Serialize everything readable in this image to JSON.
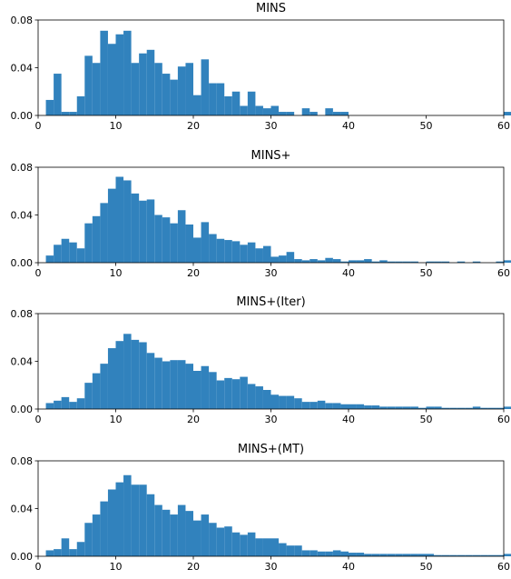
{
  "figure": {
    "bar_color": "#3182bd",
    "axis_color": "#000000"
  },
  "chart_data": [
    {
      "type": "bar",
      "title": "MINS",
      "xlim": [
        0,
        60
      ],
      "ylim": [
        0,
        0.08
      ],
      "xticks": [
        0,
        10,
        20,
        30,
        40,
        50,
        60
      ],
      "yticks": [
        0.0,
        0.04,
        0.08
      ],
      "ytick_labels": [
        "0.00",
        "0.04",
        "0.08"
      ],
      "bin_start": 1,
      "bin_width": 1,
      "values": [
        0.013,
        0.035,
        0.003,
        0.003,
        0.016,
        0.05,
        0.044,
        0.071,
        0.06,
        0.068,
        0.071,
        0.044,
        0.052,
        0.055,
        0.044,
        0.035,
        0.03,
        0.041,
        0.044,
        0.017,
        0.047,
        0.027,
        0.027,
        0.016,
        0.02,
        0.008,
        0.02,
        0.008,
        0.006,
        0.008,
        0.003,
        0.003,
        0,
        0.006,
        0.003,
        0,
        0.006,
        0.003,
        0.003,
        0,
        0,
        0,
        0,
        0,
        0,
        0,
        0,
        0,
        0,
        0,
        0,
        0,
        0,
        0,
        0,
        0,
        0,
        0,
        0,
        0.003
      ],
      "grid": false,
      "legend": "none"
    },
    {
      "type": "bar",
      "title": "MINS+",
      "xlim": [
        0,
        60
      ],
      "ylim": [
        0,
        0.08
      ],
      "xticks": [
        0,
        10,
        20,
        30,
        40,
        50,
        60
      ],
      "yticks": [
        0.0,
        0.04,
        0.08
      ],
      "ytick_labels": [
        "0.00",
        "0.04",
        "0.08"
      ],
      "bin_start": 1,
      "bin_width": 1,
      "values": [
        0.006,
        0.015,
        0.02,
        0.017,
        0.012,
        0.033,
        0.039,
        0.05,
        0.062,
        0.072,
        0.069,
        0.058,
        0.052,
        0.053,
        0.04,
        0.038,
        0.033,
        0.044,
        0.032,
        0.021,
        0.034,
        0.024,
        0.02,
        0.019,
        0.018,
        0.015,
        0.017,
        0.012,
        0.014,
        0.005,
        0.006,
        0.009,
        0.003,
        0.002,
        0.003,
        0.002,
        0.004,
        0.003,
        0.001,
        0.002,
        0.002,
        0.003,
        0.001,
        0.002,
        0.001,
        0.001,
        0.001,
        0.001,
        0,
        0.001,
        0.001,
        0.001,
        0,
        0.001,
        0,
        0.001,
        0,
        0,
        0.001,
        0.002
      ],
      "grid": false,
      "legend": "none"
    },
    {
      "type": "bar",
      "title": "MINS+(Iter)",
      "xlim": [
        0,
        60
      ],
      "ylim": [
        0,
        0.08
      ],
      "xticks": [
        0,
        10,
        20,
        30,
        40,
        50,
        60
      ],
      "yticks": [
        0.0,
        0.04,
        0.08
      ],
      "ytick_labels": [
        "0.00",
        "0.04",
        "0.08"
      ],
      "bin_start": 1,
      "bin_width": 1,
      "values": [
        0.005,
        0.007,
        0.01,
        0.006,
        0.009,
        0.022,
        0.03,
        0.038,
        0.051,
        0.057,
        0.063,
        0.058,
        0.056,
        0.047,
        0.043,
        0.04,
        0.041,
        0.041,
        0.038,
        0.032,
        0.036,
        0.031,
        0.024,
        0.026,
        0.025,
        0.027,
        0.021,
        0.019,
        0.016,
        0.012,
        0.011,
        0.011,
        0.009,
        0.006,
        0.006,
        0.007,
        0.005,
        0.005,
        0.004,
        0.004,
        0.004,
        0.003,
        0.003,
        0.002,
        0.002,
        0.002,
        0.002,
        0.002,
        0.001,
        0.002,
        0.002,
        0.001,
        0.001,
        0.001,
        0.001,
        0.002,
        0.001,
        0.001,
        0.001,
        0.002
      ],
      "grid": false,
      "legend": "none"
    },
    {
      "type": "bar",
      "title": "MINS+(MT)",
      "xlim": [
        0,
        60
      ],
      "ylim": [
        0,
        0.08
      ],
      "xticks": [
        0,
        10,
        20,
        30,
        40,
        50,
        60
      ],
      "yticks": [
        0.0,
        0.04,
        0.08
      ],
      "ytick_labels": [
        "0.00",
        "0.04",
        "0.08"
      ],
      "bin_start": 1,
      "bin_width": 1,
      "values": [
        0.005,
        0.006,
        0.015,
        0.006,
        0.012,
        0.028,
        0.035,
        0.046,
        0.056,
        0.062,
        0.068,
        0.06,
        0.06,
        0.052,
        0.043,
        0.039,
        0.035,
        0.043,
        0.038,
        0.03,
        0.035,
        0.028,
        0.024,
        0.025,
        0.02,
        0.018,
        0.02,
        0.015,
        0.015,
        0.015,
        0.011,
        0.009,
        0.009,
        0.005,
        0.005,
        0.004,
        0.004,
        0.005,
        0.004,
        0.003,
        0.003,
        0.002,
        0.002,
        0.002,
        0.002,
        0.002,
        0.002,
        0.002,
        0.002,
        0.002,
        0.001,
        0.001,
        0.001,
        0.001,
        0.001,
        0.001,
        0.001,
        0.001,
        0.001,
        0.002
      ],
      "grid": false,
      "legend": "none"
    }
  ]
}
